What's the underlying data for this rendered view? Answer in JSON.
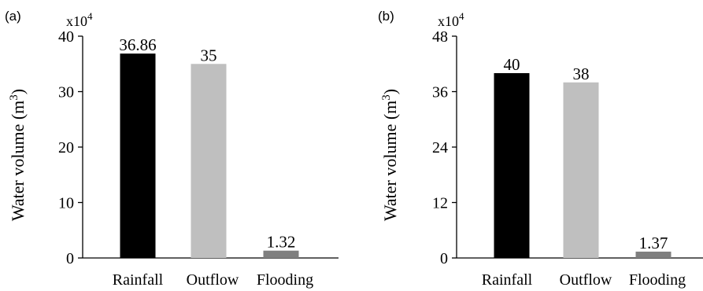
{
  "colors": {
    "rainfall": "#000000",
    "outflow": "#bfbfbf",
    "flooding": "#7f7f7f",
    "axis": "#000000"
  },
  "chart_data": [
    {
      "type": "bar",
      "panel_label": "(a)",
      "multiplier": {
        "base": "x10",
        "exp": "4"
      },
      "ylabel": {
        "main": "Water volume (m",
        "sup": "3",
        "end": ")"
      },
      "categories": [
        "Rainfall",
        "Outflow",
        "Flooding"
      ],
      "values": [
        36.86,
        35,
        1.32
      ],
      "value_labels": [
        "36.86",
        "35",
        "1.32"
      ],
      "ylim": [
        0,
        40
      ],
      "yticks": [
        0,
        10,
        20,
        30,
        40
      ],
      "ytick_labels": [
        "0",
        "10",
        "20",
        "30",
        "40"
      ],
      "grid": false,
      "legend": "none"
    },
    {
      "type": "bar",
      "panel_label": "(b)",
      "multiplier": {
        "base": "x10",
        "exp": "4"
      },
      "ylabel": {
        "main": "Water volume (m",
        "sup": "3",
        "end": ")"
      },
      "categories": [
        "Rainfall",
        "Outflow",
        "Flooding"
      ],
      "values": [
        40,
        38,
        1.37
      ],
      "value_labels": [
        "40",
        "38",
        "1.37"
      ],
      "ylim": [
        0,
        48
      ],
      "yticks": [
        0,
        12,
        24,
        36,
        48
      ],
      "ytick_labels": [
        "0",
        "12",
        "24",
        "36",
        "48"
      ],
      "grid": false,
      "legend": "none"
    }
  ]
}
